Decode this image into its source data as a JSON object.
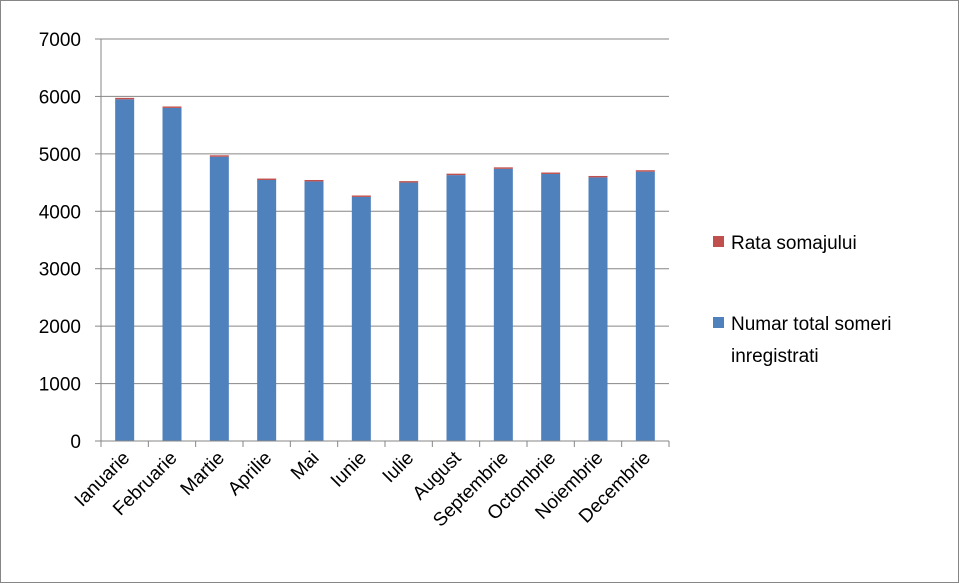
{
  "chart_data": {
    "type": "bar",
    "stacked": true,
    "title": "",
    "xlabel": "",
    "ylabel": "",
    "categories": [
      "Ianuarie",
      "Februarie",
      "Martie",
      "Aprilie",
      "Mai",
      "Iunie",
      "Iulie",
      "August",
      "Septembrie",
      "Octombrie",
      "Noiembrie",
      "Decembrie"
    ],
    "series": [
      {
        "name": "Numar total someri inregistrati",
        "color": "#4F81BD",
        "values": [
          5950,
          5800,
          4950,
          4545,
          4520,
          4250,
          4500,
          4630,
          4740,
          4650,
          4590,
          4690
        ]
      },
      {
        "name": "Rata somajului",
        "color": "#C0504D",
        "values": [
          25,
          25,
          25,
          25,
          25,
          25,
          25,
          25,
          25,
          25,
          25,
          25
        ]
      }
    ],
    "ylim": [
      0,
      7000
    ],
    "yticks": [
      0,
      1000,
      2000,
      3000,
      4000,
      5000,
      6000,
      7000
    ],
    "grid": true,
    "legend_position": "right",
    "legend": [
      {
        "label": "Rata somajului",
        "color": "#C0504D"
      },
      {
        "label_lines": [
          "Numar total someri",
          "inregistrati"
        ],
        "color": "#4F81BD"
      }
    ]
  }
}
